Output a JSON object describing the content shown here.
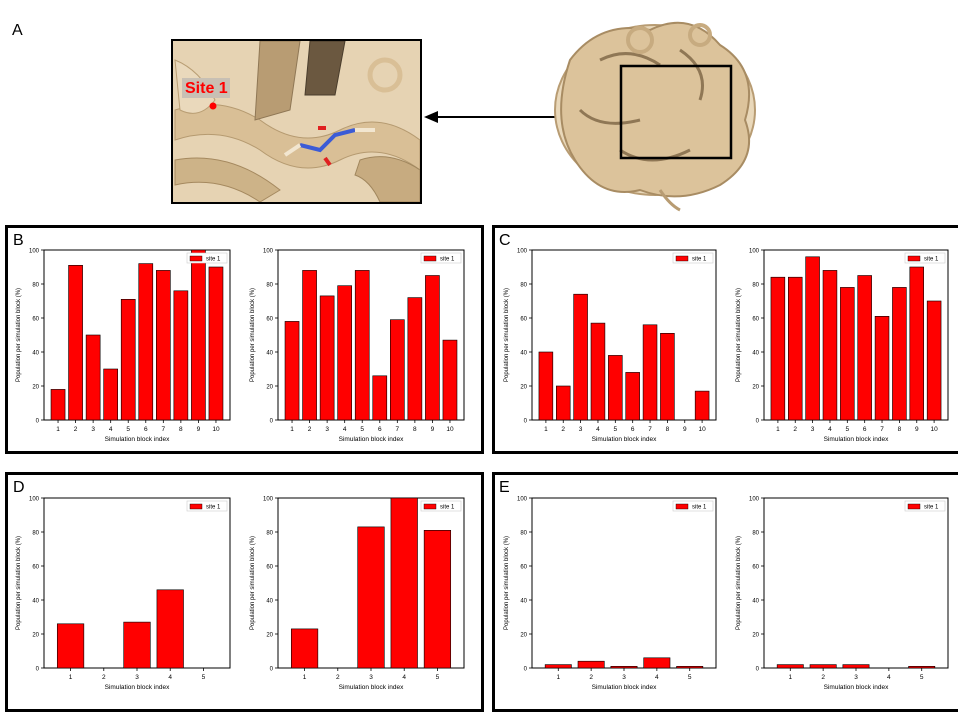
{
  "panel_labels": {
    "a": "A",
    "b": "B",
    "c": "C",
    "d": "D",
    "e": "E"
  },
  "site_label": "Site 1",
  "colors": {
    "bar": "#ff0000",
    "site_label": "#ff0000",
    "protein": "#d9bf96"
  },
  "chart_data": [
    {
      "panel": "B",
      "type": "bar",
      "xlabel": "Simulation block index",
      "ylabel": "Population per simulation block (%)",
      "legend": [
        "site 1"
      ],
      "legend_position": "top-right",
      "ylim": [
        0,
        100
      ],
      "yticks": [
        "0",
        "20",
        "40",
        "60",
        "80",
        "100"
      ],
      "categories": [
        "1",
        "2",
        "3",
        "4",
        "5",
        "6",
        "7",
        "8",
        "9",
        "10"
      ],
      "series": [
        {
          "name": "site 1",
          "values": [
            18,
            91,
            50,
            30,
            71,
            92,
            88,
            76,
            100,
            90
          ]
        }
      ]
    },
    {
      "panel": "B",
      "type": "bar",
      "xlabel": "Simulation block index",
      "ylabel": "Population per simulation block (%)",
      "legend": [
        "site 1"
      ],
      "legend_position": "top-right",
      "ylim": [
        0,
        100
      ],
      "yticks": [
        "0",
        "20",
        "40",
        "60",
        "80",
        "100"
      ],
      "categories": [
        "1",
        "2",
        "3",
        "4",
        "5",
        "6",
        "7",
        "8",
        "9",
        "10"
      ],
      "series": [
        {
          "name": "site 1",
          "values": [
            58,
            88,
            73,
            79,
            88,
            26,
            59,
            72,
            85,
            47
          ]
        }
      ]
    },
    {
      "panel": "C",
      "type": "bar",
      "xlabel": "Simulation block index",
      "ylabel": "Population per simulation block (%)",
      "legend": [
        "site 1"
      ],
      "legend_position": "top-right",
      "ylim": [
        0,
        100
      ],
      "yticks": [
        "0",
        "20",
        "40",
        "60",
        "80",
        "100"
      ],
      "categories": [
        "1",
        "2",
        "3",
        "4",
        "5",
        "6",
        "7",
        "8",
        "9",
        "10"
      ],
      "series": [
        {
          "name": "site 1",
          "values": [
            40,
            20,
            74,
            57,
            38,
            28,
            56,
            51,
            0,
            17
          ]
        }
      ]
    },
    {
      "panel": "C",
      "type": "bar",
      "xlabel": "Simulation block index",
      "ylabel": "Population per simulation block (%)",
      "legend": [
        "site 1"
      ],
      "legend_position": "top-right",
      "ylim": [
        0,
        100
      ],
      "yticks": [
        "0",
        "20",
        "40",
        "60",
        "80",
        "100"
      ],
      "categories": [
        "1",
        "2",
        "3",
        "4",
        "5",
        "6",
        "7",
        "8",
        "9",
        "10"
      ],
      "series": [
        {
          "name": "site 1",
          "values": [
            84,
            84,
            96,
            88,
            78,
            85,
            61,
            78,
            90,
            70
          ]
        }
      ]
    },
    {
      "panel": "D",
      "type": "bar",
      "xlabel": "Simulation block index",
      "ylabel": "Population per simulation block (%)",
      "legend": [
        "site 1"
      ],
      "legend_position": "top-right",
      "ylim": [
        0,
        100
      ],
      "yticks": [
        "0",
        "20",
        "40",
        "60",
        "80",
        "100"
      ],
      "categories": [
        "1",
        "2",
        "3",
        "4",
        "5"
      ],
      "series": [
        {
          "name": "site 1",
          "values": [
            26,
            0,
            27,
            46,
            0
          ]
        }
      ]
    },
    {
      "panel": "D",
      "type": "bar",
      "xlabel": "Simulation block index",
      "ylabel": "Population per simulation block (%)",
      "legend": [
        "site 1"
      ],
      "legend_position": "top-right",
      "ylim": [
        0,
        100
      ],
      "yticks": [
        "0",
        "20",
        "40",
        "60",
        "80",
        "100"
      ],
      "categories": [
        "1",
        "2",
        "3",
        "4",
        "5"
      ],
      "series": [
        {
          "name": "site 1",
          "values": [
            23,
            0,
            83,
            100,
            81
          ]
        }
      ]
    },
    {
      "panel": "E",
      "type": "bar",
      "xlabel": "Simulation block index",
      "ylabel": "Population per simulation block (%)",
      "legend": [
        "site 1"
      ],
      "legend_position": "top-right",
      "ylim": [
        0,
        100
      ],
      "yticks": [
        "0",
        "20",
        "40",
        "60",
        "80",
        "100"
      ],
      "categories": [
        "1",
        "2",
        "3",
        "4",
        "5"
      ],
      "series": [
        {
          "name": "site 1",
          "values": [
            2,
            4,
            1,
            6,
            1
          ]
        }
      ]
    },
    {
      "panel": "E",
      "type": "bar",
      "xlabel": "Simulation block index",
      "ylabel": "Population per simulation block (%)",
      "legend": [
        "site 1"
      ],
      "legend_position": "top-right",
      "ylim": [
        0,
        100
      ],
      "yticks": [
        "0",
        "20",
        "40",
        "60",
        "80",
        "100"
      ],
      "categories": [
        "1",
        "2",
        "3",
        "4",
        "5"
      ],
      "series": [
        {
          "name": "site 1",
          "values": [
            2,
            2,
            2,
            0,
            1
          ]
        }
      ]
    }
  ]
}
